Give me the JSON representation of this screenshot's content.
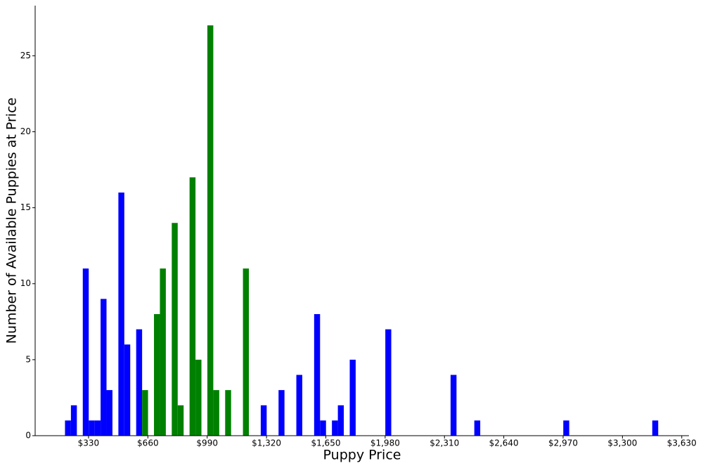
{
  "chart_data": {
    "type": "histogram",
    "x_label": "Puppy Price",
    "y_label": "Number of Available Puppies at Price",
    "bins": [
      199,
      232,
      265,
      298,
      331,
      364,
      397,
      430,
      463,
      496,
      529,
      562,
      595,
      628,
      661,
      694,
      727,
      760,
      793,
      826,
      859,
      892,
      925,
      958,
      991,
      1024,
      1057,
      1090,
      1123,
      1156,
      1189,
      1222,
      1255,
      1288,
      1321,
      1354,
      1387,
      1420,
      1453,
      1486,
      1519,
      1552,
      1585,
      1618,
      1651,
      1684,
      1717,
      1750,
      1783,
      1816,
      1849,
      1882,
      1915,
      1948,
      1981,
      2014,
      2047,
      2080,
      2113,
      2146,
      2179,
      2212,
      2245,
      2278,
      2311,
      2344,
      2377,
      2410,
      2443,
      2476,
      2509,
      2542,
      2575,
      2608,
      2641,
      2674,
      2707,
      2740,
      2773,
      2806,
      2839,
      2872,
      2905,
      2938,
      2971,
      3004,
      3037,
      3070,
      3103,
      3136,
      3169,
      3202,
      3235,
      3268,
      3301,
      3334,
      3367,
      3400,
      3433,
      3466,
      3499
    ],
    "values": [
      1,
      2,
      0,
      11,
      1,
      1,
      9,
      3,
      0,
      16,
      6,
      0,
      7,
      3,
      0,
      8,
      11,
      0,
      14,
      2,
      0,
      17,
      5,
      0,
      27,
      3,
      0,
      3,
      0,
      0,
      11,
      0,
      0,
      2,
      0,
      0,
      3,
      0,
      0,
      4,
      0,
      0,
      8,
      1,
      0,
      1,
      2,
      0,
      5,
      0,
      0,
      0,
      0,
      0,
      7,
      0,
      0,
      0,
      0,
      0,
      0,
      0,
      0,
      0,
      0,
      4,
      0,
      0,
      0,
      1,
      0,
      0,
      0,
      0,
      0,
      0,
      0,
      0,
      0,
      0,
      0,
      0,
      0,
      0,
      1,
      0,
      0,
      0,
      0,
      0,
      0,
      0,
      0,
      0,
      0,
      0,
      0,
      0,
      0,
      1
    ],
    "colors": [
      "#0000ff",
      "#0000ff",
      "#0000ff",
      "#0000ff",
      "#0000ff",
      "#0000ff",
      "#0000ff",
      "#0000ff",
      "#0000ff",
      "#0000ff",
      "#0000ff",
      "#0000ff",
      "#0000ff",
      "#008000",
      "#008000",
      "#008000",
      "#008000",
      "#008000",
      "#008000",
      "#008000",
      "#008000",
      "#008000",
      "#008000",
      "#008000",
      "#008000",
      "#008000",
      "#008000",
      "#008000",
      "#008000",
      "#008000",
      "#008000",
      "#0000ff",
      "#0000ff",
      "#0000ff",
      "#0000ff",
      "#0000ff",
      "#0000ff",
      "#0000ff",
      "#0000ff",
      "#0000ff",
      "#0000ff",
      "#0000ff",
      "#0000ff",
      "#0000ff",
      "#0000ff",
      "#0000ff",
      "#0000ff",
      "#0000ff",
      "#0000ff",
      "#0000ff",
      "#0000ff",
      "#0000ff",
      "#0000ff",
      "#0000ff",
      "#0000ff",
      "#0000ff",
      "#0000ff",
      "#0000ff",
      "#0000ff",
      "#0000ff",
      "#0000ff",
      "#0000ff",
      "#0000ff",
      "#0000ff",
      "#0000ff",
      "#0000ff",
      "#0000ff",
      "#0000ff",
      "#0000ff",
      "#0000ff",
      "#0000ff",
      "#0000ff",
      "#0000ff",
      "#0000ff",
      "#0000ff",
      "#0000ff",
      "#0000ff",
      "#0000ff",
      "#0000ff",
      "#0000ff",
      "#0000ff",
      "#0000ff",
      "#0000ff",
      "#0000ff",
      "#0000ff",
      "#0000ff",
      "#0000ff",
      "#0000ff",
      "#0000ff",
      "#0000ff",
      "#0000ff",
      "#0000ff",
      "#0000ff",
      "#0000ff",
      "#0000ff",
      "#0000ff",
      "#0000ff",
      "#0000ff",
      "#0000ff",
      "#0000ff"
    ],
    "xlim": [
      33,
      3670
    ],
    "ylim": [
      0,
      28.3
    ],
    "xticks": [
      {
        "value": 330,
        "label": "$330"
      },
      {
        "value": 660,
        "label": "$660"
      },
      {
        "value": 990,
        "label": "$990"
      },
      {
        "value": 1320,
        "label": "$1,320"
      },
      {
        "value": 1650,
        "label": "$1,650"
      },
      {
        "value": 1980,
        "label": "$1,980"
      },
      {
        "value": 2310,
        "label": "$2,310"
      },
      {
        "value": 2640,
        "label": "$2,640"
      },
      {
        "value": 2970,
        "label": "$2,970"
      },
      {
        "value": 3300,
        "label": "$3,300"
      },
      {
        "value": 3630,
        "label": "$3,630"
      }
    ],
    "yticks": [
      0,
      5,
      10,
      15,
      20,
      25
    ],
    "grid": false
  }
}
